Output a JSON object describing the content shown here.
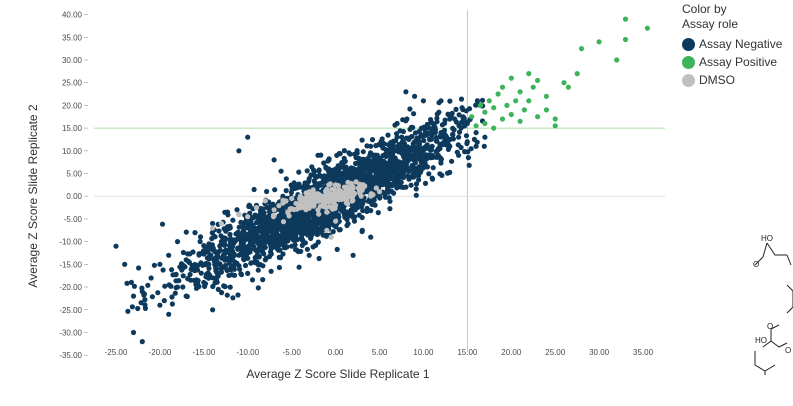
{
  "chart_data": {
    "type": "scatter",
    "xlabel": "Average Z Score Slide Replicate 1",
    "ylabel": "Average Z Score Slide Replicate 2",
    "xlim": [
      -27.5,
      37.5
    ],
    "ylim": [
      -36.5,
      41
    ],
    "x_ticks": [
      "-25.00",
      "-20.00",
      "-15.00",
      "-10.00",
      "-5.00",
      "0.00",
      "5.00",
      "10.00",
      "15.00",
      "20.00",
      "25.00",
      "30.00",
      "35.00"
    ],
    "x_tick_values": [
      -25,
      -20,
      -15,
      -10,
      -5,
      0,
      5,
      10,
      15,
      20,
      25,
      30,
      35
    ],
    "y_ticks": [
      "40.00",
      "35.00",
      "30.00",
      "25.00",
      "20.00",
      "15.00",
      "10.00",
      "5.00",
      "0.00",
      "-5.00",
      "-10.00",
      "-15.00",
      "-20.00",
      "-25.00",
      "-30.00",
      "-35.00"
    ],
    "y_tick_values": [
      40,
      35,
      30,
      25,
      20,
      15,
      10,
      5,
      0,
      -5,
      -10,
      -15,
      -20,
      -25,
      -30,
      -35
    ],
    "reference_lines": {
      "x": 15,
      "y": 15
    },
    "grid": false,
    "legend_position": "top-right",
    "legend_title": "Color by\nAssay role",
    "series": [
      {
        "name": "Assay Negative",
        "color": "#0d3a5c",
        "points_summary": "dense diagonal cloud (~3000 pts) from about (-25,-15) to (15,15)",
        "points": [
          [
            -25,
            -11
          ],
          [
            -24,
            -15
          ],
          [
            -23,
            -22
          ],
          [
            -23,
            -30
          ],
          [
            -22,
            -32
          ],
          [
            -22,
            -21
          ],
          [
            -21,
            -18
          ],
          [
            -20,
            -15
          ],
          [
            -20,
            -24
          ],
          [
            -19,
            -13
          ],
          [
            -19,
            -26
          ],
          [
            -18,
            -20
          ],
          [
            -18,
            -10
          ],
          [
            -17,
            -14
          ],
          [
            -17,
            -22
          ],
          [
            -16,
            -16
          ],
          [
            -16,
            -8
          ],
          [
            -15,
            -19
          ],
          [
            -15,
            -12
          ],
          [
            -14,
            -6
          ],
          [
            -14,
            -25
          ],
          [
            -13,
            -16
          ],
          [
            -13,
            -10
          ],
          [
            -12,
            -20
          ],
          [
            -12,
            -7
          ],
          [
            -11,
            -13
          ],
          [
            -11,
            -4
          ],
          [
            -10,
            -9
          ],
          [
            -10,
            -17
          ],
          [
            -9,
            -2
          ],
          [
            -9,
            -12
          ],
          [
            -8,
            -6
          ],
          [
            -8,
            -14
          ],
          [
            -7,
            -3
          ],
          [
            -7,
            -10
          ],
          [
            -6,
            -7
          ],
          [
            -6,
            0
          ],
          [
            -5,
            -4
          ],
          [
            -5,
            -11
          ],
          [
            -4,
            2
          ],
          [
            -4,
            -8
          ],
          [
            -3,
            -2
          ],
          [
            -3,
            -13
          ],
          [
            -2,
            1
          ],
          [
            -2,
            -6
          ],
          [
            -1,
            -3
          ],
          [
            -1,
            4
          ],
          [
            0,
            -1
          ],
          [
            0,
            6
          ],
          [
            1,
            2
          ],
          [
            1,
            -4
          ],
          [
            2,
            5
          ],
          [
            2,
            -2
          ],
          [
            3,
            8
          ],
          [
            3,
            1
          ],
          [
            4,
            4
          ],
          [
            4,
            11
          ],
          [
            5,
            7
          ],
          [
            5,
            0
          ],
          [
            6,
            10
          ],
          [
            6,
            3
          ],
          [
            7,
            6
          ],
          [
            7,
            13
          ],
          [
            8,
            9
          ],
          [
            8,
            2
          ],
          [
            9,
            12
          ],
          [
            9,
            5
          ],
          [
            10,
            8
          ],
          [
            10,
            15
          ],
          [
            11,
            11
          ],
          [
            11,
            4
          ],
          [
            12,
            14
          ],
          [
            12,
            8
          ],
          [
            13,
            11
          ],
          [
            13,
            17
          ],
          [
            14,
            13
          ],
          [
            14,
            9
          ],
          [
            15,
            16
          ],
          [
            15,
            12
          ],
          [
            16,
            14
          ],
          [
            16,
            11
          ],
          [
            17,
            13
          ],
          [
            8,
            23
          ],
          [
            9,
            22
          ],
          [
            -11,
            10
          ],
          [
            -10,
            13
          ],
          [
            -7,
            8
          ],
          [
            2,
            -13
          ],
          [
            4,
            -9
          ],
          [
            10,
            21
          ],
          [
            12,
            21
          ],
          [
            7,
            16
          ],
          [
            -2,
            9
          ]
        ]
      },
      {
        "name": "Assay Positive",
        "color": "#3db35a",
        "points_summary": "upper-right cluster x 15–35, y 15–39",
        "points": [
          [
            15.5,
            17.5
          ],
          [
            16,
            15.5
          ],
          [
            16.5,
            20
          ],
          [
            17,
            16
          ],
          [
            17,
            18.5
          ],
          [
            17.5,
            21
          ],
          [
            18,
            15
          ],
          [
            18,
            19.5
          ],
          [
            18.5,
            22.5
          ],
          [
            19,
            17
          ],
          [
            19,
            24
          ],
          [
            19.5,
            20
          ],
          [
            20,
            18
          ],
          [
            20,
            26
          ],
          [
            20.5,
            21
          ],
          [
            21,
            23
          ],
          [
            21,
            16.5
          ],
          [
            21.5,
            19
          ],
          [
            22,
            27
          ],
          [
            22,
            21
          ],
          [
            22.5,
            24
          ],
          [
            23,
            17.5
          ],
          [
            23,
            25.5
          ],
          [
            24,
            19
          ],
          [
            24,
            22
          ],
          [
            25,
            15.5
          ],
          [
            25,
            17
          ],
          [
            26,
            25
          ],
          [
            26.5,
            24
          ],
          [
            27.5,
            27
          ],
          [
            28,
            32.5
          ],
          [
            30,
            34
          ],
          [
            32,
            30
          ],
          [
            33,
            39
          ],
          [
            33,
            34.5
          ],
          [
            35.5,
            37
          ]
        ]
      },
      {
        "name": "DMSO",
        "color": "#c0c0c0",
        "points_summary": "tight cluster around origin, x -14 to 5, y -9 to 4",
        "points": [
          [
            -14,
            -7
          ],
          [
            -13,
            -6
          ],
          [
            -11,
            -4
          ],
          [
            -10,
            -4.5
          ],
          [
            -9,
            -2.5
          ],
          [
            -8,
            -1
          ],
          [
            -7,
            -3
          ],
          [
            -6,
            -1.5
          ],
          [
            -5,
            -0.5
          ],
          [
            -4,
            0
          ],
          [
            -3,
            -1.5
          ],
          [
            -2,
            0.5
          ],
          [
            -1,
            -1
          ],
          [
            0,
            1
          ],
          [
            1,
            -0.5
          ],
          [
            2,
            0.5
          ],
          [
            3,
            1.5
          ],
          [
            4,
            0
          ],
          [
            5,
            1
          ],
          [
            -2,
            -3
          ],
          [
            -1,
            1.5
          ],
          [
            0,
            -2
          ],
          [
            1,
            2
          ],
          [
            -3,
            1
          ],
          [
            -1,
            -3.5
          ],
          [
            0,
            -5.5
          ],
          [
            -1,
            -7.5
          ],
          [
            -0.5,
            -9
          ],
          [
            0,
            2.5
          ],
          [
            2,
            2
          ]
        ]
      }
    ]
  },
  "molecule": {
    "labels": [
      "HO",
      "O",
      "O",
      "HO",
      "O"
    ]
  }
}
